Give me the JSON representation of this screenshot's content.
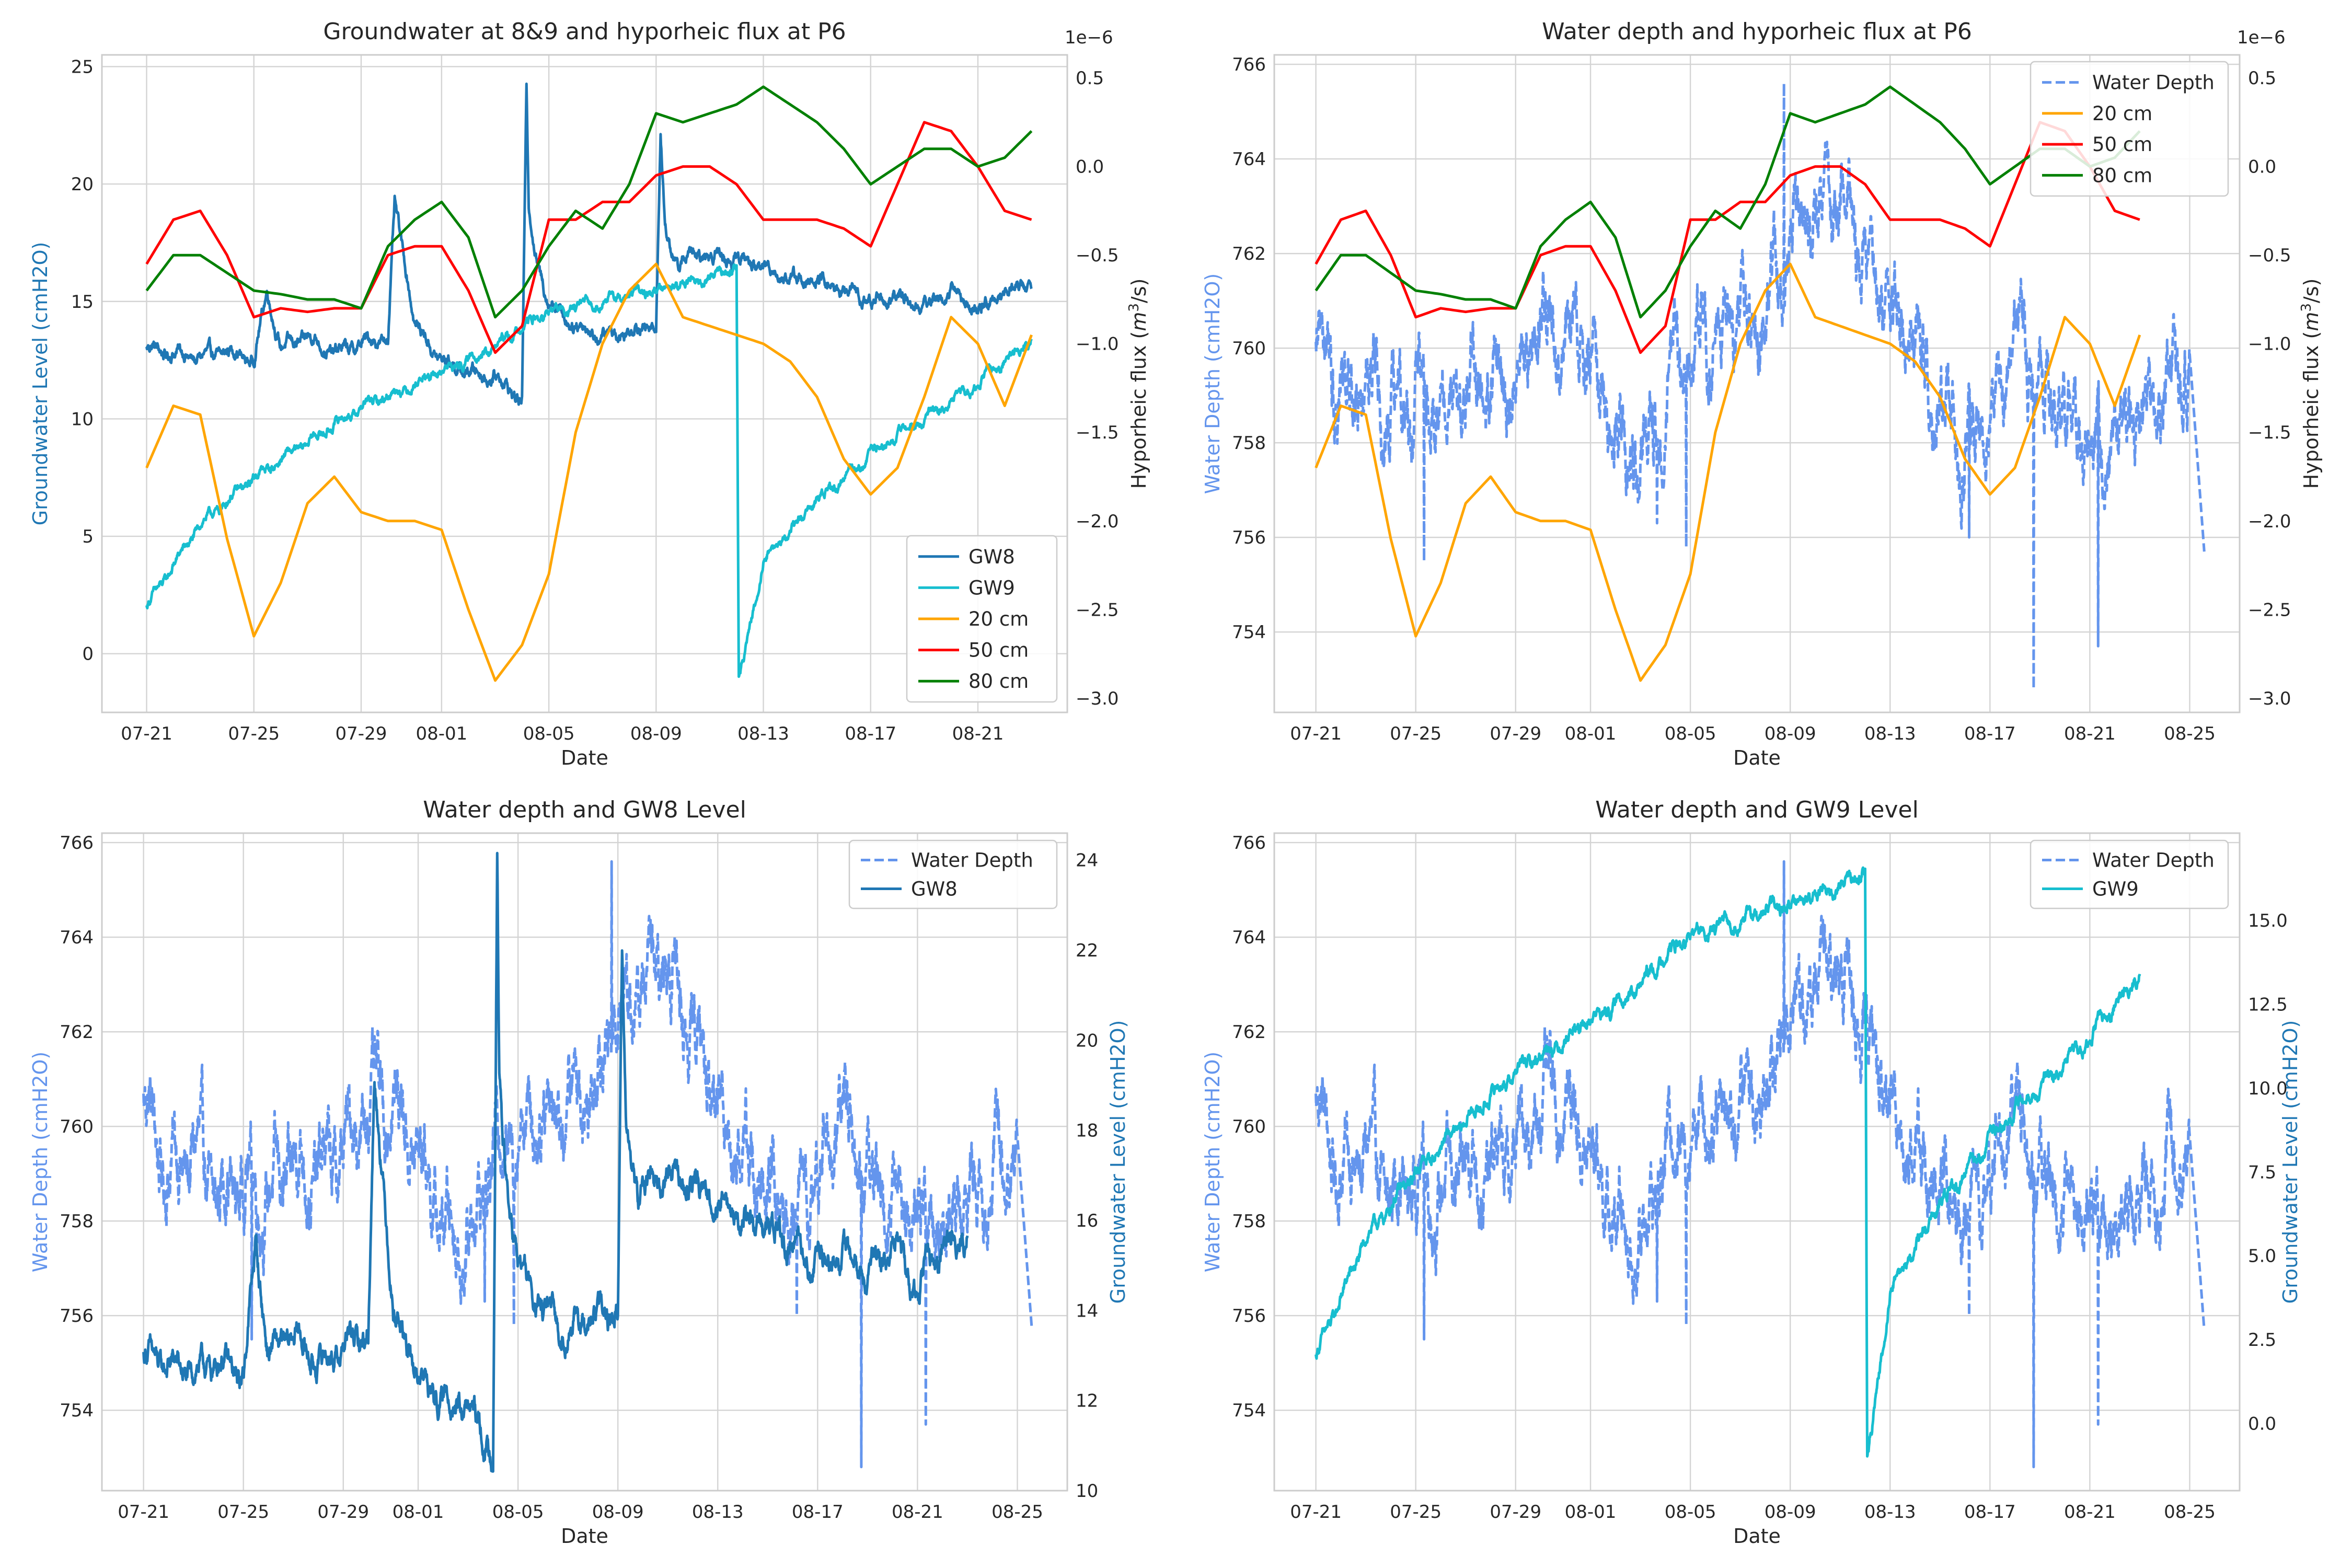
{
  "colors": {
    "gw8": "#1f77b4",
    "gw9": "#17becf",
    "c20": "#ffa500",
    "c50": "#ff0000",
    "c80": "#008000",
    "water": "#6495ed",
    "grid": "#d4d4d4",
    "frame": "#cccccc"
  },
  "chart_data": [
    {
      "type": "line",
      "title": "Groundwater at 8&9 and hyporheic flux at P6",
      "xlabel": "Date",
      "ylabel": "Groundwater Level (cmH2O)",
      "ylabel_color": "#1f77b4",
      "ylabel2": "Hyporheic flux ($m^3$/s)",
      "ylabel2_color": "#262626",
      "ylim": [
        -2.5,
        25.5
      ],
      "ylim2": [
        -3.08e-06,
        6.3e-07
      ],
      "y_ticks": [
        0,
        5,
        10,
        15,
        20,
        25
      ],
      "y_tick_labels": [
        "0",
        "5",
        "10",
        "15",
        "20",
        "25"
      ],
      "y2_ticks": [
        -3e-06,
        -2.5e-06,
        -2e-06,
        -1.5e-06,
        -1e-06,
        -5e-07,
        0.0,
        5e-07
      ],
      "y2_tick_labels": [
        "−3.0",
        "−2.5",
        "−2.0",
        "−1.5",
        "−1.0",
        "−0.5",
        "0.0",
        "0.5"
      ],
      "y2_offset_label": "1e−6",
      "xlim": [
        "2023-07-19 08:00",
        "2023-08-24 08:00"
      ],
      "x_ticks": [
        "2023-07-21",
        "2023-07-25",
        "2023-07-29",
        "2023-08-01",
        "2023-08-05",
        "2023-08-09",
        "2023-08-13",
        "2023-08-17",
        "2023-08-21"
      ],
      "x_tick_labels": [
        "07-21",
        "07-25",
        "07-29",
        "08-01",
        "08-05",
        "08-09",
        "08-13",
        "08-17",
        "08-21"
      ],
      "grid": true,
      "legend": "lower-right",
      "legend_entries": [
        "GW8",
        "GW9",
        "20 cm",
        "50 cm",
        "80 cm"
      ],
      "series": [
        {
          "name": "GW8",
          "axis": "left",
          "color": "#1f77b4",
          "style": "solid",
          "noise": 0.35,
          "x": [
            "2023-07-21",
            "2023-07-22",
            "2023-07-23",
            "2023-07-24",
            "2023-07-25",
            "2023-07-25 12:00",
            "2023-07-26",
            "2023-07-27",
            "2023-07-28",
            "2023-07-29",
            "2023-07-30",
            "2023-07-30 06:00",
            "2023-07-30 18:00",
            "2023-07-31",
            "2023-08-01",
            "2023-08-02",
            "2023-08-03",
            "2023-08-04",
            "2023-08-04 04:00",
            "2023-08-04 06:00",
            "2023-08-04 12:00",
            "2023-08-05",
            "2023-08-06",
            "2023-08-07",
            "2023-08-08",
            "2023-08-09",
            "2023-08-09 04:00",
            "2023-08-09 08:00",
            "2023-08-09 20:00",
            "2023-08-10",
            "2023-08-11",
            "2023-08-12",
            "2023-08-13",
            "2023-08-14",
            "2023-08-15",
            "2023-08-16",
            "2023-08-17",
            "2023-08-18",
            "2023-08-19",
            "2023-08-20",
            "2023-08-21",
            "2023-08-22",
            "2023-08-23"
          ],
          "y": [
            13.0,
            12.8,
            12.6,
            12.9,
            12.5,
            15.5,
            13.0,
            13.5,
            12.8,
            13.2,
            13.5,
            19.0,
            16.0,
            14.0,
            12.5,
            12.0,
            11.8,
            10.8,
            24.0,
            19.0,
            17.0,
            15.0,
            14.0,
            13.5,
            13.8,
            14.0,
            22.0,
            18.0,
            16.5,
            16.8,
            17.0,
            16.8,
            16.5,
            16.0,
            15.8,
            15.5,
            15.0,
            15.2,
            14.8,
            15.5,
            14.5,
            15.5,
            15.8
          ]
        },
        {
          "name": "GW9",
          "axis": "left",
          "color": "#17becf",
          "style": "solid",
          "noise": 0.25,
          "x": [
            "2023-07-21",
            "2023-07-23",
            "2023-07-25",
            "2023-07-27",
            "2023-07-29",
            "2023-07-31",
            "2023-08-02",
            "2023-08-03",
            "2023-08-04",
            "2023-08-05",
            "2023-08-07",
            "2023-08-09",
            "2023-08-11",
            "2023-08-12",
            "2023-08-12 02:00",
            "2023-08-13",
            "2023-08-15",
            "2023-08-17",
            "2023-08-19",
            "2023-08-21",
            "2023-08-23"
          ],
          "y": [
            2.0,
            5.5,
            7.5,
            9.0,
            10.5,
            11.5,
            12.5,
            13.0,
            14.0,
            14.5,
            15.0,
            15.5,
            16.0,
            16.5,
            -1.2,
            4.0,
            6.5,
            8.5,
            10.0,
            11.5,
            13.5
          ]
        },
        {
          "name": "20 cm",
          "axis": "right",
          "color": "#ffa500",
          "style": "solid",
          "noise": 0,
          "x": [
            "2023-07-21",
            "2023-07-22",
            "2023-07-23",
            "2023-07-24",
            "2023-07-25",
            "2023-07-26",
            "2023-07-27",
            "2023-07-28",
            "2023-07-29",
            "2023-07-30",
            "2023-07-31",
            "2023-08-01",
            "2023-08-02",
            "2023-08-03",
            "2023-08-04",
            "2023-08-05",
            "2023-08-06",
            "2023-08-07",
            "2023-08-08",
            "2023-08-09",
            "2023-08-10",
            "2023-08-11",
            "2023-08-12",
            "2023-08-13",
            "2023-08-14",
            "2023-08-15",
            "2023-08-16",
            "2023-08-17",
            "2023-08-18",
            "2023-08-19",
            "2023-08-20",
            "2023-08-21",
            "2023-08-22",
            "2023-08-23"
          ],
          "y": [
            -1.7e-06,
            -1.35e-06,
            -1.4e-06,
            -2.1e-06,
            -2.65e-06,
            -2.35e-06,
            -1.9e-06,
            -1.75e-06,
            -1.95e-06,
            -2e-06,
            -2e-06,
            -2.05e-06,
            -2.5e-06,
            -2.9e-06,
            -2.7e-06,
            -2.3e-06,
            -1.5e-06,
            -1e-06,
            -7e-07,
            -5.5e-07,
            -8.5e-07,
            -9e-07,
            -9.5e-07,
            -1e-06,
            -1.1e-06,
            -1.3e-06,
            -1.65e-06,
            -1.85e-06,
            -1.7e-06,
            -1.3e-06,
            -8.5e-07,
            -1e-06,
            -1.35e-06,
            -9.5e-07
          ]
        },
        {
          "name": "50 cm",
          "axis": "right",
          "color": "#ff0000",
          "style": "solid",
          "noise": 0,
          "x": [
            "2023-07-21",
            "2023-07-22",
            "2023-07-23",
            "2023-07-24",
            "2023-07-25",
            "2023-07-26",
            "2023-07-27",
            "2023-07-28",
            "2023-07-29",
            "2023-07-30",
            "2023-07-31",
            "2023-08-01",
            "2023-08-02",
            "2023-08-03",
            "2023-08-04",
            "2023-08-05",
            "2023-08-06",
            "2023-08-07",
            "2023-08-08",
            "2023-08-09",
            "2023-08-10",
            "2023-08-11",
            "2023-08-12",
            "2023-08-13",
            "2023-08-14",
            "2023-08-15",
            "2023-08-16",
            "2023-08-17",
            "2023-08-18",
            "2023-08-19",
            "2023-08-20",
            "2023-08-21",
            "2023-08-22",
            "2023-08-23"
          ],
          "y": [
            -5.5e-07,
            -3e-07,
            -2.5e-07,
            -5e-07,
            -8.5e-07,
            -8e-07,
            -8.2e-07,
            -8e-07,
            -8e-07,
            -5e-07,
            -4.5e-07,
            -4.5e-07,
            -7e-07,
            -1.05e-06,
            -9e-07,
            -3e-07,
            -3e-07,
            -2e-07,
            -2e-07,
            -5e-08,
            0.0,
            0.0,
            -1e-07,
            -3e-07,
            -3e-07,
            -3e-07,
            -3.5e-07,
            -4.5e-07,
            -1e-07,
            2.5e-07,
            2e-07,
            0.0,
            -2.5e-07,
            -3e-07
          ]
        },
        {
          "name": "80 cm",
          "axis": "right",
          "color": "#008000",
          "style": "solid",
          "noise": 0,
          "x": [
            "2023-07-21",
            "2023-07-22",
            "2023-07-23",
            "2023-07-24",
            "2023-07-25",
            "2023-07-26",
            "2023-07-27",
            "2023-07-28",
            "2023-07-29",
            "2023-07-30",
            "2023-07-31",
            "2023-08-01",
            "2023-08-02",
            "2023-08-03",
            "2023-08-04",
            "2023-08-05",
            "2023-08-06",
            "2023-08-07",
            "2023-08-08",
            "2023-08-09",
            "2023-08-10",
            "2023-08-11",
            "2023-08-12",
            "2023-08-13",
            "2023-08-14",
            "2023-08-15",
            "2023-08-16",
            "2023-08-17",
            "2023-08-18",
            "2023-08-19",
            "2023-08-20",
            "2023-08-21",
            "2023-08-22",
            "2023-08-23"
          ],
          "y": [
            -7e-07,
            -5e-07,
            -5e-07,
            -6e-07,
            -7e-07,
            -7.2e-07,
            -7.5e-07,
            -7.5e-07,
            -8e-07,
            -4.5e-07,
            -3e-07,
            -2e-07,
            -4e-07,
            -8.5e-07,
            -7e-07,
            -4.5e-07,
            -2.5e-07,
            -3.5e-07,
            -1e-07,
            3e-07,
            2.5e-07,
            3e-07,
            3.5e-07,
            4.5e-07,
            3.5e-07,
            2.5e-07,
            1e-07,
            -1e-07,
            0.0,
            1e-07,
            1e-07,
            0.0,
            5e-08,
            2e-07
          ]
        }
      ]
    },
    {
      "type": "line",
      "title": "Water depth and hyporheic flux at P6",
      "xlabel": "Date",
      "ylabel": "Water Depth (cmH2O)",
      "ylabel_color": "#6495ed",
      "ylabel2": "Hyporheic flux ($m^3$/s)",
      "ylabel2_color": "#262626",
      "ylim": [
        752.3,
        766.2
      ],
      "ylim2": [
        -3.08e-06,
        6.3e-07
      ],
      "y_ticks": [
        754,
        756,
        758,
        760,
        762,
        764,
        766
      ],
      "y_tick_labels": [
        "754",
        "756",
        "758",
        "760",
        "762",
        "764",
        "766"
      ],
      "y2_ticks": [
        -3e-06,
        -2.5e-06,
        -2e-06,
        -1.5e-06,
        -1e-06,
        -5e-07,
        0.0,
        5e-07
      ],
      "y2_tick_labels": [
        "−3.0",
        "−2.5",
        "−2.0",
        "−1.5",
        "−1.0",
        "−0.5",
        "0.0",
        "0.5"
      ],
      "y2_offset_label": "1e−6",
      "xlim": [
        "2023-07-19 08:00",
        "2023-08-27 00:00"
      ],
      "x_ticks": [
        "2023-07-21",
        "2023-07-25",
        "2023-07-29",
        "2023-08-01",
        "2023-08-05",
        "2023-08-09",
        "2023-08-13",
        "2023-08-17",
        "2023-08-21",
        "2023-08-25"
      ],
      "x_tick_labels": [
        "07-21",
        "07-25",
        "07-29",
        "08-01",
        "08-05",
        "08-09",
        "08-13",
        "08-17",
        "08-21",
        "08-25"
      ],
      "grid": true,
      "legend": "upper-right",
      "legend_entries": [
        "Water Depth",
        "20 cm",
        "50 cm",
        "80 cm"
      ],
      "series": [
        {
          "name": "Water Depth",
          "axis": "left",
          "color": "#6495ed",
          "style": "dashed",
          "noise": 1.0,
          "x": [
            "2023-07-21",
            "2023-07-22",
            "2023-07-23",
            "2023-07-24",
            "2023-07-25",
            "2023-07-26",
            "2023-07-27",
            "2023-07-28",
            "2023-07-29",
            "2023-07-30",
            "2023-07-31",
            "2023-08-01",
            "2023-08-02",
            "2023-08-03",
            "2023-08-04",
            "2023-08-05",
            "2023-08-06",
            "2023-08-07",
            "2023-08-08",
            "2023-08-09",
            "2023-08-10",
            "2023-08-11",
            "2023-08-12",
            "2023-08-13",
            "2023-08-14",
            "2023-08-15",
            "2023-08-16",
            "2023-08-17",
            "2023-08-18",
            "2023-08-19",
            "2023-08-20",
            "2023-08-21",
            "2023-08-22",
            "2023-08-23",
            "2023-08-24",
            "2023-08-25"
          ],
          "y": [
            760.5,
            759.0,
            759.5,
            758.5,
            759.0,
            758.5,
            759.2,
            759.0,
            759.5,
            760.5,
            760.5,
            759.5,
            758.0,
            757.5,
            759.5,
            760.0,
            760.5,
            760.5,
            761.0,
            762.5,
            763.0,
            763.5,
            762.0,
            760.5,
            759.5,
            758.5,
            758.0,
            759.0,
            760.5,
            759.0,
            758.5,
            758.0,
            758.0,
            758.5,
            759.0,
            760.0
          ],
          "spikes": [
            [
              "2023-07-25 08:00",
              755.5
            ],
            [
              "2023-08-03 16:00",
              756.3
            ],
            [
              "2023-08-04 20:00",
              755.8
            ],
            [
              "2023-08-08 18:00",
              765.6
            ],
            [
              "2023-08-16 04:00",
              756.0
            ],
            [
              "2023-08-18 18:00",
              752.8
            ],
            [
              "2023-08-21 08:00",
              753.7
            ],
            [
              "2023-08-25 14:00",
              755.7
            ]
          ]
        },
        {
          "name": "20 cm",
          "axis": "right",
          "color": "#ffa500",
          "style": "solid",
          "noise": 0,
          "same_as": 0
        },
        {
          "name": "50 cm",
          "axis": "right",
          "color": "#ff0000",
          "style": "solid",
          "noise": 0,
          "same_as": 0
        },
        {
          "name": "80 cm",
          "axis": "right",
          "color": "#008000",
          "style": "solid",
          "noise": 0,
          "same_as": 0
        }
      ]
    },
    {
      "type": "line",
      "title": "Water depth and GW8 Level",
      "xlabel": "Date",
      "ylabel": "Water Depth (cmH2O)",
      "ylabel_color": "#6495ed",
      "ylabel2": "Groundwater Level (cmH2O)",
      "ylabel2_color": "#1f77b4",
      "ylim": [
        752.3,
        766.2
      ],
      "ylim2": [
        10.0,
        24.6
      ],
      "y_ticks": [
        754,
        756,
        758,
        760,
        762,
        764,
        766
      ],
      "y_tick_labels": [
        "754",
        "756",
        "758",
        "760",
        "762",
        "764",
        "766"
      ],
      "y2_ticks": [
        10,
        12,
        14,
        16,
        18,
        20,
        22,
        24
      ],
      "y2_tick_labels": [
        "10",
        "12",
        "14",
        "16",
        "18",
        "20",
        "22",
        "24"
      ],
      "xlim": [
        "2023-07-19 08:00",
        "2023-08-27 00:00"
      ],
      "x_ticks": [
        "2023-07-21",
        "2023-07-25",
        "2023-07-29",
        "2023-08-01",
        "2023-08-05",
        "2023-08-09",
        "2023-08-13",
        "2023-08-17",
        "2023-08-21",
        "2023-08-25"
      ],
      "x_tick_labels": [
        "07-21",
        "07-25",
        "07-29",
        "08-01",
        "08-05",
        "08-09",
        "08-13",
        "08-17",
        "08-21",
        "08-25"
      ],
      "grid": true,
      "legend": "upper-right",
      "legend_entries": [
        "Water Depth",
        "GW8"
      ],
      "series": [
        {
          "name": "Water Depth",
          "axis": "left",
          "color": "#6495ed",
          "style": "dashed",
          "same_as": 1
        },
        {
          "name": "GW8",
          "axis": "right",
          "color": "#1f77b4",
          "style": "solid",
          "same_as": 0
        }
      ]
    },
    {
      "type": "line",
      "title": "Water depth and GW9 Level",
      "xlabel": "Date",
      "ylabel": "Water Depth (cmH2O)",
      "ylabel_color": "#6495ed",
      "ylabel2": "Groundwater Level (cmH2O)",
      "ylabel2_color": "#1f77b4",
      "ylim": [
        752.3,
        766.2
      ],
      "ylim2": [
        -2.0,
        17.6
      ],
      "y_ticks": [
        754,
        756,
        758,
        760,
        762,
        764,
        766
      ],
      "y_tick_labels": [
        "754",
        "756",
        "758",
        "760",
        "762",
        "764",
        "766"
      ],
      "y2_ticks": [
        0.0,
        2.5,
        5.0,
        7.5,
        10.0,
        12.5,
        15.0
      ],
      "y2_tick_labels": [
        "0.0",
        "2.5",
        "5.0",
        "7.5",
        "10.0",
        "12.5",
        "15.0"
      ],
      "xlim": [
        "2023-07-19 08:00",
        "2023-08-27 00:00"
      ],
      "x_ticks": [
        "2023-07-21",
        "2023-07-25",
        "2023-07-29",
        "2023-08-01",
        "2023-08-05",
        "2023-08-09",
        "2023-08-13",
        "2023-08-17",
        "2023-08-21",
        "2023-08-25"
      ],
      "x_tick_labels": [
        "07-21",
        "07-25",
        "07-29",
        "08-01",
        "08-05",
        "08-09",
        "08-13",
        "08-17",
        "08-21",
        "08-25"
      ],
      "grid": true,
      "legend": "upper-right",
      "legend_entries": [
        "Water Depth",
        "GW9"
      ],
      "series": [
        {
          "name": "Water Depth",
          "axis": "left",
          "color": "#6495ed",
          "style": "dashed",
          "same_as": 1
        },
        {
          "name": "GW9",
          "axis": "right",
          "color": "#17becf",
          "style": "solid",
          "same_as": 0
        }
      ]
    }
  ]
}
